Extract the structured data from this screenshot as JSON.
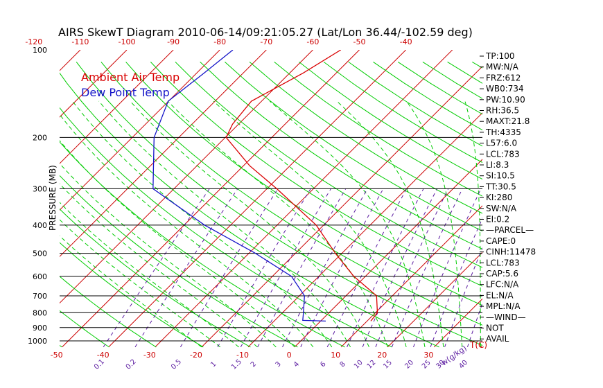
{
  "title": "AIRS SkewT Diagram 2010-06-14/09:21:05.27 (Lat/Lon 36.44/-102.59 deg)",
  "ylabel": "PRESSURE (MB)",
  "x_unit_label": "T(C)",
  "mixing_ratio_unit_label": "w(g/kg)",
  "legend": [
    {
      "label": "Ambient Air Temp",
      "color": "#d90000"
    },
    {
      "label": "Dew Point Temp",
      "color": "#1414c8"
    }
  ],
  "colors": {
    "isotherm": "#cc0000",
    "dry_adiabat": "#00cc00",
    "moist_adiabat": "#00cc00",
    "mixing_ratio": "#5a1aa0",
    "isobar": "#000000",
    "temperature_profile": "#d90000",
    "dewpoint_profile": "#1414c8",
    "top_ticks": "#cc0000",
    "bottom_ticks": "#cc0000",
    "mixing_labels": "#5a1aa0"
  },
  "top_axis_ticks": [
    "-120",
    "-110",
    "-100",
    "-90",
    "-80",
    "-70",
    "-60",
    "-50",
    "-40"
  ],
  "top_axis_values": [
    -120,
    -110,
    -100,
    -90,
    -80,
    -70,
    -60,
    -50,
    -40
  ],
  "bottom_axis_ticks": [
    "-50",
    "-40",
    "-30",
    "-20",
    "-10",
    "0",
    "10",
    "20",
    "30"
  ],
  "bottom_axis_values": [
    -50,
    -40,
    -30,
    -20,
    -10,
    0,
    10,
    20,
    30
  ],
  "pressure_levels": [
    100,
    200,
    300,
    400,
    500,
    600,
    700,
    800,
    900,
    1000
  ],
  "mixing_ratio_labels": [
    "0.1",
    "0.2",
    "0.5",
    "1",
    "1.5",
    "2",
    "3",
    "4",
    "6",
    "8",
    "10",
    "12",
    "15",
    "20",
    "25",
    "30",
    "40"
  ],
  "mixing_ratio_values": [
    0.1,
    0.2,
    0.5,
    1,
    1.5,
    2,
    3,
    4,
    6,
    8,
    10,
    12,
    15,
    20,
    25,
    30,
    40
  ],
  "indices": [
    "TP:100",
    "MW:N/A",
    "FRZ:612",
    "WB0:734",
    "PW:10.90",
    "RH:36.5",
    "MAXT:21.8",
    "TH:4335",
    "L57:6.0",
    "LCL:783",
    "LI:8.3",
    "SI:10.5",
    "TT:30.5",
    "KI:280",
    "SW:N/A",
    "EI:0.2",
    "—PARCEL—",
    "CAPE:0",
    "CINH:11478",
    "LCL:783",
    "CAP:5.6",
    "LFC:N/A",
    "EL:N/A",
    "MPL:N/A",
    "—WIND—",
    "NOT",
    "AVAIL"
  ],
  "chart_data": {
    "type": "line",
    "title": "AIRS SkewT Diagram 2010-06-14/09:21:05.27 (Lat/Lon 36.44/-102.59 deg)",
    "ylabel": "PRESSURE (MB)",
    "xlabel": "T(C)",
    "y_scale": "log (pressure, decreasing upward)",
    "ylim": [
      1050,
      100
    ],
    "grid": true,
    "legend_position": "top-left",
    "series": [
      {
        "name": "Ambient Air Temp",
        "points": [
          {
            "p": 855,
            "t": 10.8
          },
          {
            "p": 800,
            "t": 10.4
          },
          {
            "p": 700,
            "t": 6.6
          },
          {
            "p": 600,
            "t": -2.5
          },
          {
            "p": 500,
            "t": -11.4
          },
          {
            "p": 400,
            "t": -21.6
          },
          {
            "p": 300,
            "t": -37.9
          },
          {
            "p": 250,
            "t": -48.7
          },
          {
            "p": 200,
            "t": -59.8
          },
          {
            "p": 180,
            "t": -61.3
          },
          {
            "p": 150,
            "t": -62.2
          },
          {
            "p": 120,
            "t": -57.1
          },
          {
            "p": 100,
            "t": -54.0
          }
        ]
      },
      {
        "name": "Dew Point Temp",
        "points": [
          {
            "p": 855,
            "t": 1.1
          },
          {
            "p": 850,
            "t": -4.0
          },
          {
            "p": 800,
            "t": -5.5
          },
          {
            "p": 700,
            "t": -8.9
          },
          {
            "p": 600,
            "t": -15.9
          },
          {
            "p": 500,
            "t": -28.6
          },
          {
            "p": 400,
            "t": -45.6
          },
          {
            "p": 300,
            "t": -64.5
          },
          {
            "p": 200,
            "t": -75.3
          },
          {
            "p": 150,
            "t": -80.1
          },
          {
            "p": 120,
            "t": -78.4
          },
          {
            "p": 100,
            "t": -77.2
          }
        ]
      }
    ]
  }
}
